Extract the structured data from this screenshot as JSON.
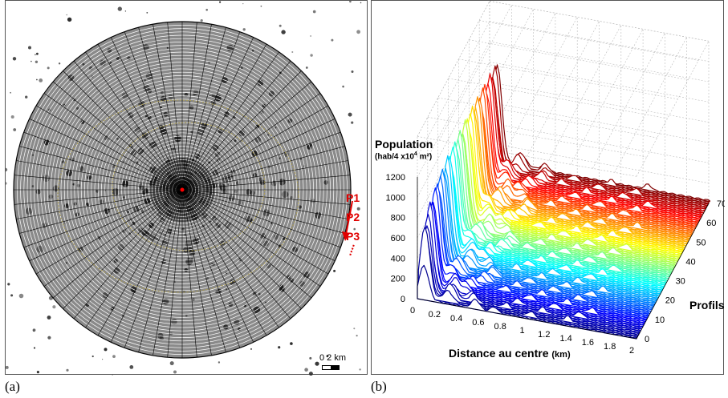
{
  "captions": {
    "a": "(a)",
    "b": "(b)"
  },
  "panel_a": {
    "profile_labels": [
      "P1",
      "P2",
      "P3"
    ],
    "ellipsis": "....",
    "scale_label": "0   2  km"
  },
  "chart_data": {
    "type": "3d-waterfall",
    "zlabel_line1": "Population",
    "zlabel_line2": "(hab/4 x10",
    "zlabel_sup": "4",
    "zlabel_after": " m²)",
    "xlabel": "Distance au centre",
    "xlabel_unit": "(km)",
    "ylabel": "Profils",
    "z_ticks": [
      "0",
      "200",
      "400",
      "600",
      "800",
      "1000",
      "1200"
    ],
    "x_ticks": [
      "0",
      "0.2",
      "0.4",
      "0.6",
      "0.8",
      "1",
      "1.2",
      "1.4",
      "1.6",
      "1.8",
      "2"
    ],
    "y_ticks": [
      "0",
      "10",
      "20",
      "30",
      "40",
      "50",
      "60",
      "70"
    ],
    "zlim": [
      0,
      1200
    ],
    "xlim": [
      0,
      2
    ],
    "ylim": [
      0,
      70
    ],
    "n_profiles": 72,
    "colormap": [
      "#00008f",
      "#0000ff",
      "#0080ff",
      "#00ffff",
      "#80ff80",
      "#ffff00",
      "#ff8000",
      "#ff0000",
      "#800000"
    ],
    "peak_values": {
      "first_profile_max": 600,
      "overall_max": 1100
    },
    "grid": true
  }
}
